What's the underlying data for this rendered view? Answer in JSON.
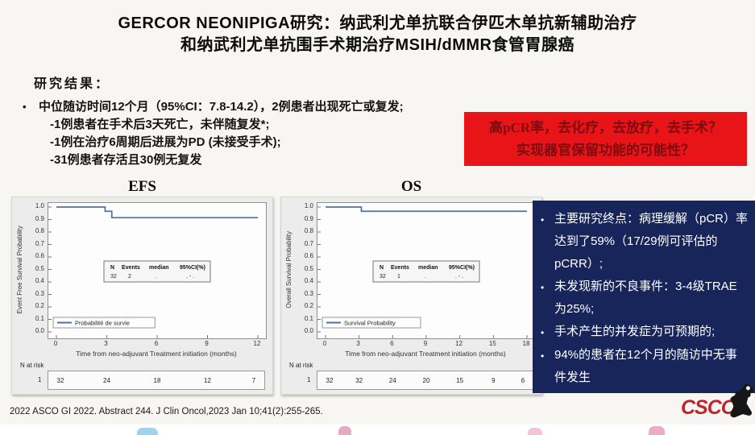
{
  "slide": {
    "title_line1": "GERCOR NEONIPIGA研究：纳武利尤单抗联合伊匹木单抗新辅助治疗",
    "title_line2": "和纳武利尤单抗围手术期治疗MSIH/dMMR食管胃腺癌",
    "section_label": "研究结果：",
    "bullet_marker": "•",
    "bullet_main": "中位随访时间12个月（95%CI：7.8-14.2），2例患者出现死亡或复发;",
    "sub_bullets": [
      "-1例患者在手术后3天死亡，未伴随复发*;",
      "-1例在治疗6周期后进展为PD (未接受手术);",
      "-31例患者存活且30例无复发"
    ],
    "footer": "2022 ASCO GI 2022. Abstract 244. J Clin Oncol,2023 Jan 10;41(2):255-265."
  },
  "red_box": {
    "line1": "高pCR率，去化疗，去放疗，去手术？",
    "line2": "实现器官保留功能的可能性？",
    "bg_color": "#e81418",
    "text_color": "#7d0c10"
  },
  "blue_box": {
    "bg_color": "#17255a",
    "bullet_marker": "•",
    "bullets": [
      "主要研究终点：病理缓解（pCR）率达到了59%（17/29例可评估的pCRR）;",
      "未发现新的不良事件：3-4级TRAE为25%;",
      "手术产生的并发症为可预期的;",
      "94%的患者在12个月的随访中无事件发生"
    ]
  },
  "logo": {
    "text": "CSCO",
    "color": "#c2242d"
  },
  "chart_data": [
    {
      "type": "line",
      "title": "EFS",
      "ylabel": "Event Free Survival Probability",
      "xlabel": "Time from neo-adjuvant Treatment initiation (months)",
      "xlim": [
        0,
        12
      ],
      "ylim": [
        0,
        1
      ],
      "xticks": [
        0,
        3,
        6,
        9,
        12
      ],
      "yticks": [
        "1.0",
        "0.9",
        "0.8",
        "0.7",
        "0.6",
        "0.5",
        "0.4",
        "0.3",
        "0.2",
        "0.1",
        "0.0"
      ],
      "grid": false,
      "line_color": "#53719f",
      "series": [
        {
          "name": "Probabilité de survie",
          "x": [
            0,
            2.9,
            2.9,
            3.3,
            3.3,
            12
          ],
          "y": [
            1.0,
            1.0,
            0.966,
            0.966,
            0.915,
            0.915
          ]
        }
      ],
      "stats_header": [
        "N",
        "Events",
        "median",
        "95%CI(%)"
      ],
      "stats_row": [
        "32",
        "2",
        ".",
        ". - ."
      ],
      "legend_label": "Probabilité de survie",
      "legend_position": "bottom-left",
      "n_at_risk_label": "N at risk",
      "risk_group": "1",
      "n_at_risk": [
        32,
        24,
        18,
        12,
        7
      ]
    },
    {
      "type": "line",
      "title": "OS",
      "ylabel": "Overall Survival Probability",
      "xlabel": "Time from neo-adjuvant Treatment initiation (months)",
      "xlim": [
        0,
        18
      ],
      "ylim": [
        0,
        1
      ],
      "xticks": [
        0,
        3,
        6,
        9,
        12,
        15,
        18
      ],
      "yticks": [
        "1.0",
        "0.9",
        "0.8",
        "0.7",
        "0.6",
        "0.5",
        "0.4",
        "0.3",
        "0.2",
        "0.1",
        "0.0"
      ],
      "grid": false,
      "line_color": "#53719f",
      "series": [
        {
          "name": "Survival Probability",
          "x": [
            0,
            3.2,
            3.2,
            18
          ],
          "y": [
            1.0,
            1.0,
            0.966,
            0.966
          ]
        }
      ],
      "stats_header": [
        "N",
        "Events",
        "median",
        "95%CI(%)"
      ],
      "stats_row": [
        "32",
        "1",
        ".",
        ". - ."
      ],
      "legend_label": "Survival Probability",
      "legend_position": "bottom-left",
      "n_at_risk_label": "N at risk",
      "risk_group": "1",
      "n_at_risk": [
        32,
        32,
        24,
        20,
        15,
        9,
        6
      ]
    }
  ]
}
